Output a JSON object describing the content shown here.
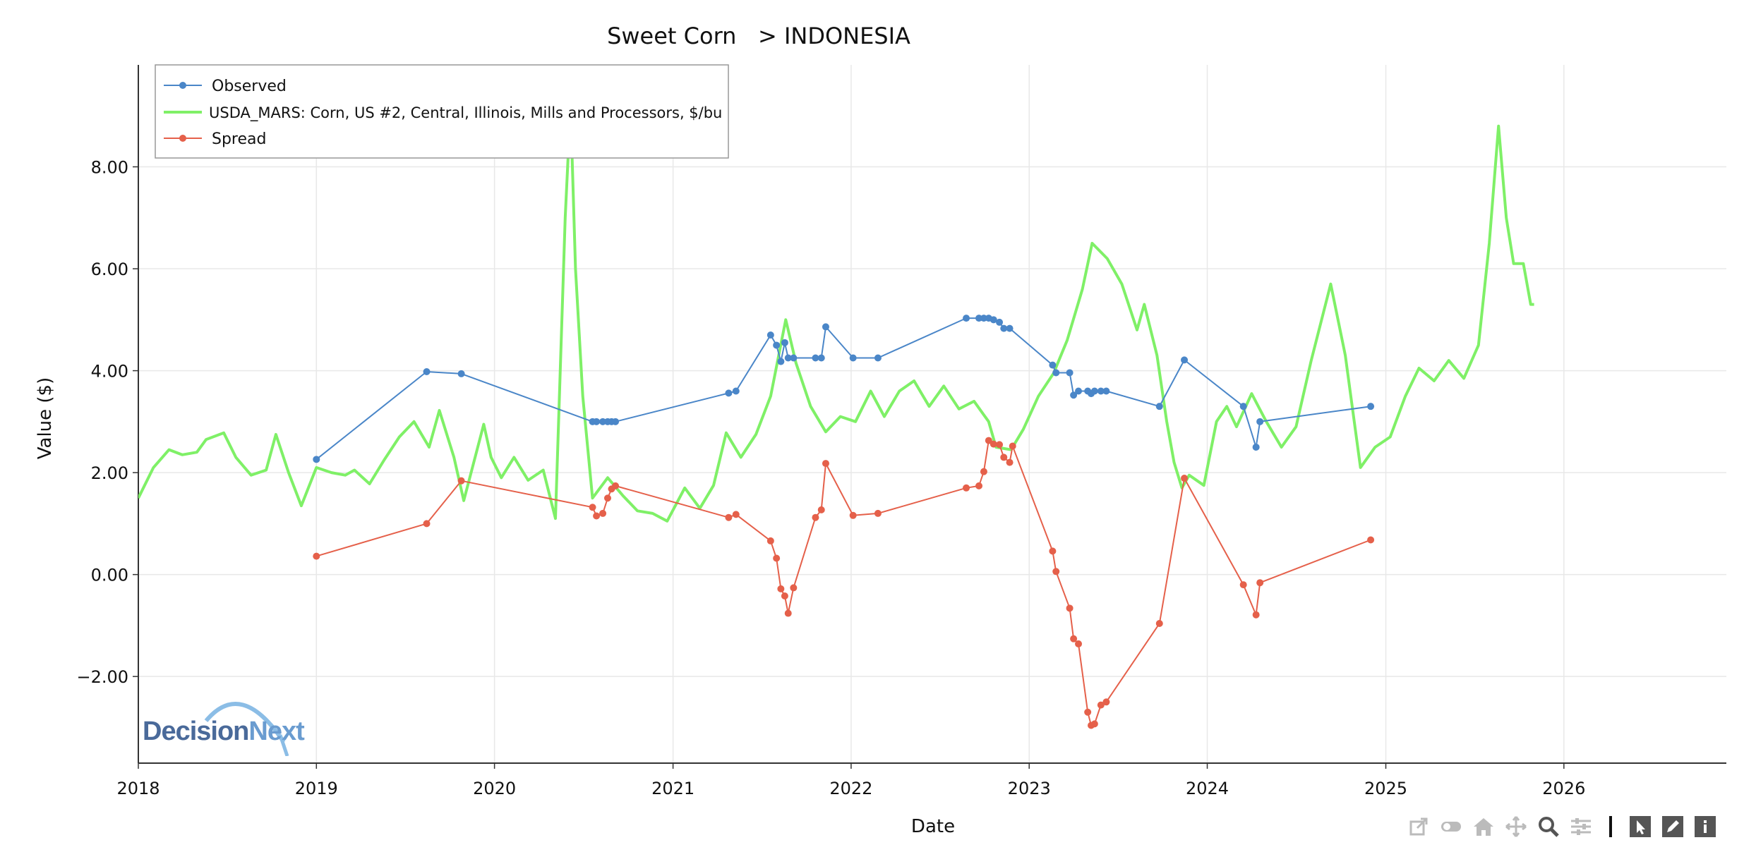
{
  "chart_data": {
    "type": "line",
    "title": "Sweet Corn   > INDONESIA",
    "xlabel": "Date",
    "ylabel": "Value ($)",
    "xlim": [
      "2018-01-01",
      "2026-11-30"
    ],
    "ylim": [
      -3.7,
      10.0
    ],
    "x_ticks": [
      "2018",
      "2019",
      "2020",
      "2021",
      "2022",
      "2023",
      "2024",
      "2025",
      "2026"
    ],
    "y_ticks": [
      8.0,
      6.0,
      4.0,
      2.0,
      0.0,
      -2.0
    ],
    "y_tick_labels": [
      "8.00",
      "6.00",
      "4.00",
      "2.00",
      "0.00",
      "−2.00"
    ],
    "grid": true,
    "legend_position": "top-left",
    "series": [
      {
        "name": "Observed",
        "color": "#4a86c8",
        "markers": true,
        "points": [
          [
            "2019-01-01",
            2.26
          ],
          [
            "2019-08-15",
            3.98
          ],
          [
            "2019-10-25",
            3.94
          ],
          [
            "2020-07-20",
            3.0
          ],
          [
            "2020-07-28",
            3.0
          ],
          [
            "2020-08-10",
            3.0
          ],
          [
            "2020-08-20",
            3.0
          ],
          [
            "2020-08-28",
            3.0
          ],
          [
            "2020-09-05",
            3.0
          ],
          [
            "2021-04-25",
            3.56
          ],
          [
            "2021-05-10",
            3.6
          ],
          [
            "2021-07-20",
            4.7
          ],
          [
            "2021-08-01",
            4.5
          ],
          [
            "2021-08-10",
            4.18
          ],
          [
            "2021-08-18",
            4.55
          ],
          [
            "2021-08-25",
            4.25
          ],
          [
            "2021-09-05",
            4.25
          ],
          [
            "2021-10-20",
            4.25
          ],
          [
            "2021-11-01",
            4.25
          ],
          [
            "2021-11-10",
            4.86
          ],
          [
            "2022-01-05",
            4.25
          ],
          [
            "2022-02-25",
            4.25
          ],
          [
            "2022-08-25",
            5.03
          ],
          [
            "2022-09-20",
            5.03
          ],
          [
            "2022-09-30",
            5.03
          ],
          [
            "2022-10-10",
            5.03
          ],
          [
            "2022-10-20",
            5.0
          ],
          [
            "2022-11-01",
            4.95
          ],
          [
            "2022-11-10",
            4.83
          ],
          [
            "2022-11-22",
            4.83
          ],
          [
            "2023-02-18",
            4.11
          ],
          [
            "2023-02-25",
            3.96
          ],
          [
            "2023-03-25",
            3.96
          ],
          [
            "2023-04-02",
            3.52
          ],
          [
            "2023-04-12",
            3.6
          ],
          [
            "2023-05-01",
            3.6
          ],
          [
            "2023-05-08",
            3.55
          ],
          [
            "2023-05-15",
            3.6
          ],
          [
            "2023-05-28",
            3.6
          ],
          [
            "2023-06-08",
            3.6
          ],
          [
            "2023-09-25",
            3.3
          ],
          [
            "2023-11-15",
            4.21
          ],
          [
            "2024-03-15",
            3.3
          ],
          [
            "2024-04-10",
            2.5
          ],
          [
            "2024-04-18",
            3.0
          ],
          [
            "2024-12-01",
            3.3
          ]
        ]
      },
      {
        "name": "USDA_MARS: Corn, US #2, Central, Illinois, Mills and Processors, $/bu",
        "color": "#7ff067",
        "markers": false,
        "points": [
          [
            "2018-01-01",
            1.5
          ],
          [
            "2018-02-01",
            2.1
          ],
          [
            "2018-03-05",
            2.45
          ],
          [
            "2018-04-01",
            2.35
          ],
          [
            "2018-05-01",
            2.4
          ],
          [
            "2018-05-20",
            2.65
          ],
          [
            "2018-06-25",
            2.78
          ],
          [
            "2018-07-20",
            2.3
          ],
          [
            "2018-08-20",
            1.95
          ],
          [
            "2018-09-20",
            2.05
          ],
          [
            "2018-10-10",
            2.75
          ],
          [
            "2018-11-05",
            2.0
          ],
          [
            "2018-12-01",
            1.35
          ],
          [
            "2019-01-01",
            2.1
          ],
          [
            "2019-02-01",
            2.0
          ],
          [
            "2019-03-01",
            1.95
          ],
          [
            "2019-03-20",
            2.05
          ],
          [
            "2019-04-20",
            1.78
          ],
          [
            "2019-05-20",
            2.25
          ],
          [
            "2019-06-20",
            2.7
          ],
          [
            "2019-07-20",
            3.0
          ],
          [
            "2019-08-20",
            2.5
          ],
          [
            "2019-09-10",
            3.22
          ],
          [
            "2019-10-10",
            2.3
          ],
          [
            "2019-10-30",
            1.45
          ],
          [
            "2019-12-10",
            2.95
          ],
          [
            "2019-12-25",
            2.3
          ],
          [
            "2020-01-15",
            1.9
          ],
          [
            "2020-02-10",
            2.3
          ],
          [
            "2020-03-10",
            1.85
          ],
          [
            "2020-04-10",
            2.05
          ],
          [
            "2020-05-05",
            1.1
          ],
          [
            "2020-05-25",
            7.0
          ],
          [
            "2020-06-05",
            9.2
          ],
          [
            "2020-06-15",
            6.0
          ],
          [
            "2020-06-30",
            3.5
          ],
          [
            "2020-07-20",
            1.5
          ],
          [
            "2020-08-20",
            1.9
          ],
          [
            "2020-09-20",
            1.55
          ],
          [
            "2020-10-20",
            1.25
          ],
          [
            "2020-11-20",
            1.2
          ],
          [
            "2020-12-20",
            1.05
          ],
          [
            "2021-01-25",
            1.7
          ],
          [
            "2021-02-25",
            1.3
          ],
          [
            "2021-03-25",
            1.75
          ],
          [
            "2021-04-20",
            2.78
          ],
          [
            "2021-05-20",
            2.3
          ],
          [
            "2021-06-20",
            2.75
          ],
          [
            "2021-07-20",
            3.5
          ],
          [
            "2021-08-20",
            5.0
          ],
          [
            "2021-09-10",
            4.15
          ],
          [
            "2021-10-10",
            3.3
          ],
          [
            "2021-11-10",
            2.8
          ],
          [
            "2021-12-10",
            3.1
          ],
          [
            "2022-01-10",
            3.0
          ],
          [
            "2022-02-10",
            3.6
          ],
          [
            "2022-03-10",
            3.1
          ],
          [
            "2022-04-10",
            3.6
          ],
          [
            "2022-05-10",
            3.8
          ],
          [
            "2022-06-10",
            3.3
          ],
          [
            "2022-07-10",
            3.7
          ],
          [
            "2022-08-10",
            3.25
          ],
          [
            "2022-09-10",
            3.4
          ],
          [
            "2022-10-10",
            3.0
          ],
          [
            "2022-10-25",
            2.5
          ],
          [
            "2022-11-25",
            2.45
          ],
          [
            "2022-12-20",
            2.85
          ],
          [
            "2023-01-20",
            3.5
          ],
          [
            "2023-02-20",
            3.95
          ],
          [
            "2023-03-20",
            4.6
          ],
          [
            "2023-04-20",
            5.6
          ],
          [
            "2023-05-10",
            6.5
          ],
          [
            "2023-06-10",
            6.2
          ],
          [
            "2023-07-10",
            5.7
          ],
          [
            "2023-08-10",
            4.8
          ],
          [
            "2023-08-25",
            5.3
          ],
          [
            "2023-09-20",
            4.3
          ],
          [
            "2023-10-10",
            3.0
          ],
          [
            "2023-10-25",
            2.2
          ],
          [
            "2023-11-10",
            1.7
          ],
          [
            "2023-11-25",
            1.95
          ],
          [
            "2023-12-25",
            1.75
          ],
          [
            "2024-01-20",
            3.0
          ],
          [
            "2024-02-10",
            3.3
          ],
          [
            "2024-03-01",
            2.9
          ],
          [
            "2024-04-01",
            3.55
          ],
          [
            "2024-05-01",
            3.0
          ],
          [
            "2024-06-01",
            2.5
          ],
          [
            "2024-07-01",
            2.9
          ],
          [
            "2024-08-01",
            4.2
          ],
          [
            "2024-09-10",
            5.7
          ],
          [
            "2024-10-10",
            4.3
          ],
          [
            "2024-11-10",
            2.1
          ],
          [
            "2024-12-10",
            2.5
          ],
          [
            "2025-01-10",
            2.7
          ],
          [
            "2025-02-10",
            3.5
          ],
          [
            "2025-03-10",
            4.05
          ],
          [
            "2025-04-10",
            3.8
          ],
          [
            "2025-05-10",
            4.2
          ],
          [
            "2025-06-10",
            3.85
          ],
          [
            "2025-07-10",
            4.5
          ],
          [
            "2025-08-01",
            6.5
          ],
          [
            "2025-08-20",
            8.8
          ],
          [
            "2025-09-05",
            7.0
          ],
          [
            "2025-09-20",
            6.1
          ],
          [
            "2025-10-10",
            6.1
          ],
          [
            "2025-10-25",
            5.3
          ],
          [
            "2025-11-01",
            5.3
          ]
        ]
      },
      {
        "name": "Spread",
        "color": "#e5604a",
        "markers": true,
        "points": [
          [
            "2019-01-01",
            0.36
          ],
          [
            "2019-08-15",
            1.0
          ],
          [
            "2019-10-25",
            1.84
          ],
          [
            "2020-07-20",
            1.32
          ],
          [
            "2020-07-28",
            1.15
          ],
          [
            "2020-08-10",
            1.2
          ],
          [
            "2020-08-20",
            1.5
          ],
          [
            "2020-08-28",
            1.68
          ],
          [
            "2020-09-05",
            1.74
          ],
          [
            "2021-04-25",
            1.12
          ],
          [
            "2021-05-10",
            1.18
          ],
          [
            "2021-07-20",
            0.66
          ],
          [
            "2021-08-01",
            0.32
          ],
          [
            "2021-08-10",
            -0.28
          ],
          [
            "2021-08-18",
            -0.42
          ],
          [
            "2021-08-25",
            -0.76
          ],
          [
            "2021-09-05",
            -0.26
          ],
          [
            "2021-10-20",
            1.12
          ],
          [
            "2021-11-01",
            1.27
          ],
          [
            "2021-11-10",
            2.18
          ],
          [
            "2022-01-05",
            1.16
          ],
          [
            "2022-02-25",
            1.2
          ],
          [
            "2022-08-25",
            1.7
          ],
          [
            "2022-09-20",
            1.74
          ],
          [
            "2022-09-30",
            2.02
          ],
          [
            "2022-10-10",
            2.63
          ],
          [
            "2022-10-20",
            2.56
          ],
          [
            "2022-11-01",
            2.55
          ],
          [
            "2022-11-10",
            2.3
          ],
          [
            "2022-11-22",
            2.2
          ],
          [
            "2022-11-28",
            2.52
          ],
          [
            "2023-02-18",
            0.46
          ],
          [
            "2023-02-25",
            0.06
          ],
          [
            "2023-03-25",
            -0.66
          ],
          [
            "2023-04-02",
            -1.26
          ],
          [
            "2023-04-12",
            -1.36
          ],
          [
            "2023-05-01",
            -2.7
          ],
          [
            "2023-05-08",
            -2.96
          ],
          [
            "2023-05-15",
            -2.93
          ],
          [
            "2023-05-28",
            -2.56
          ],
          [
            "2023-06-08",
            -2.5
          ],
          [
            "2023-09-25",
            -0.96
          ],
          [
            "2023-11-15",
            1.89
          ],
          [
            "2024-03-15",
            -0.2
          ],
          [
            "2024-04-10",
            -0.79
          ],
          [
            "2024-04-18",
            -0.16
          ],
          [
            "2024-12-01",
            0.68
          ]
        ]
      }
    ]
  },
  "toolbar": {
    "buttons": [
      "export-icon",
      "toggle-icon",
      "home-icon",
      "pan-icon",
      "zoom-icon",
      "settings-icon",
      "select-icon",
      "edit-icon",
      "info-icon"
    ]
  },
  "logo": {
    "text_a": "Decision",
    "text_b": "Next"
  }
}
